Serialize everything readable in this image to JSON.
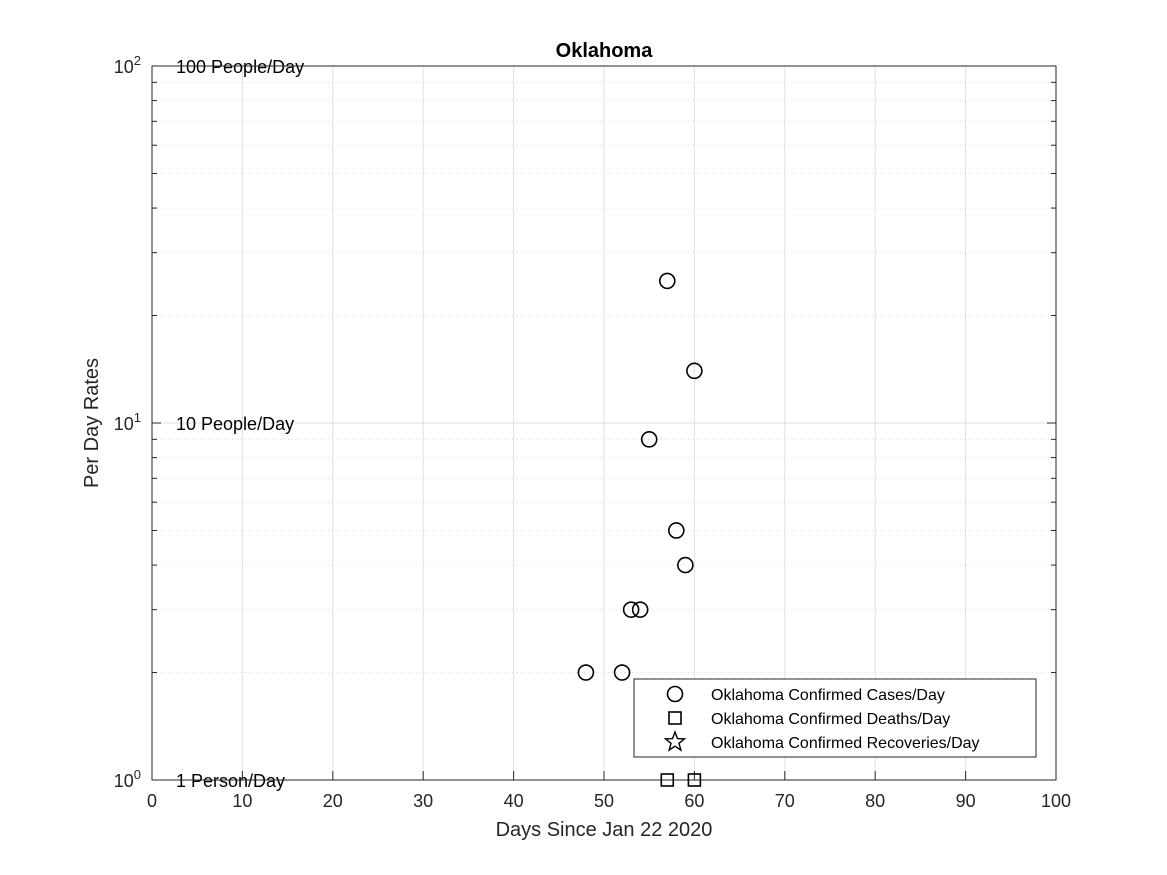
{
  "chart_data": {
    "type": "scatter",
    "title": "Oklahoma",
    "xlabel": "Days Since Jan 22 2020",
    "ylabel": "Per Day Rates",
    "xlim": [
      0,
      100
    ],
    "ylim": [
      1,
      100
    ],
    "yscale": "log",
    "grid": true,
    "x_ticks": [
      "0",
      "10",
      "20",
      "30",
      "40",
      "50",
      "60",
      "70",
      "80",
      "90",
      "100"
    ],
    "y_ticks": [
      {
        "base": "10",
        "exp": "0"
      },
      {
        "base": "10",
        "exp": "1"
      },
      {
        "base": "10",
        "exp": "2"
      }
    ],
    "annotations": [
      {
        "text": "100 People/Day",
        "y": 100
      },
      {
        "text": "10 People/Day",
        "y": 10
      },
      {
        "text": "1 Person/Day",
        "y": 1
      }
    ],
    "legend_position": "bottom-right",
    "series": [
      {
        "name": "Oklahoma Confirmed Cases/Day",
        "marker": "circle",
        "color": "#000000",
        "x": [
          48,
          52,
          53,
          54,
          55,
          57,
          58,
          59,
          60
        ],
        "y": [
          2,
          2,
          3,
          3,
          9,
          25,
          5,
          4,
          14
        ]
      },
      {
        "name": "Oklahoma Confirmed Deaths/Day",
        "marker": "square",
        "color": "#000000",
        "x": [
          57,
          60
        ],
        "y": [
          1,
          1
        ]
      },
      {
        "name": "Oklahoma Confirmed Recoveries/Day",
        "marker": "star",
        "color": "#000000",
        "x": [],
        "y": []
      }
    ]
  }
}
